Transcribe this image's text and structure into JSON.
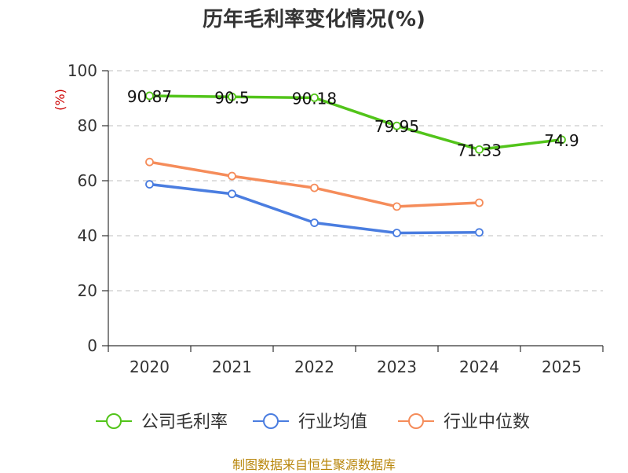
{
  "chart_data": {
    "type": "line",
    "title": "历年毛利率变化情况(%)",
    "xlabel": "",
    "ylabel": "(%)",
    "categories": [
      "2020",
      "2021",
      "2022",
      "2023",
      "2024",
      "2025"
    ],
    "ylim": [
      0,
      100
    ],
    "yticks": [
      0,
      20,
      40,
      60,
      80,
      100
    ],
    "grid": true,
    "legend_position": "bottom",
    "series": [
      {
        "name": "公司毛利率",
        "color": "#52c41a",
        "values": [
          90.87,
          90.5,
          90.18,
          79.95,
          71.33,
          74.9
        ],
        "show_labels": true
      },
      {
        "name": "行业均值",
        "color": "#4a7de0",
        "values": [
          58.7,
          55.2,
          44.7,
          41.0,
          41.2,
          null
        ],
        "show_labels": false
      },
      {
        "name": "行业中位数",
        "color": "#f58c5a",
        "values": [
          66.8,
          61.7,
          57.4,
          50.6,
          52.0,
          null
        ],
        "show_labels": false
      }
    ]
  },
  "footer": {
    "source": "制图数据来自恒生聚源数据库"
  }
}
